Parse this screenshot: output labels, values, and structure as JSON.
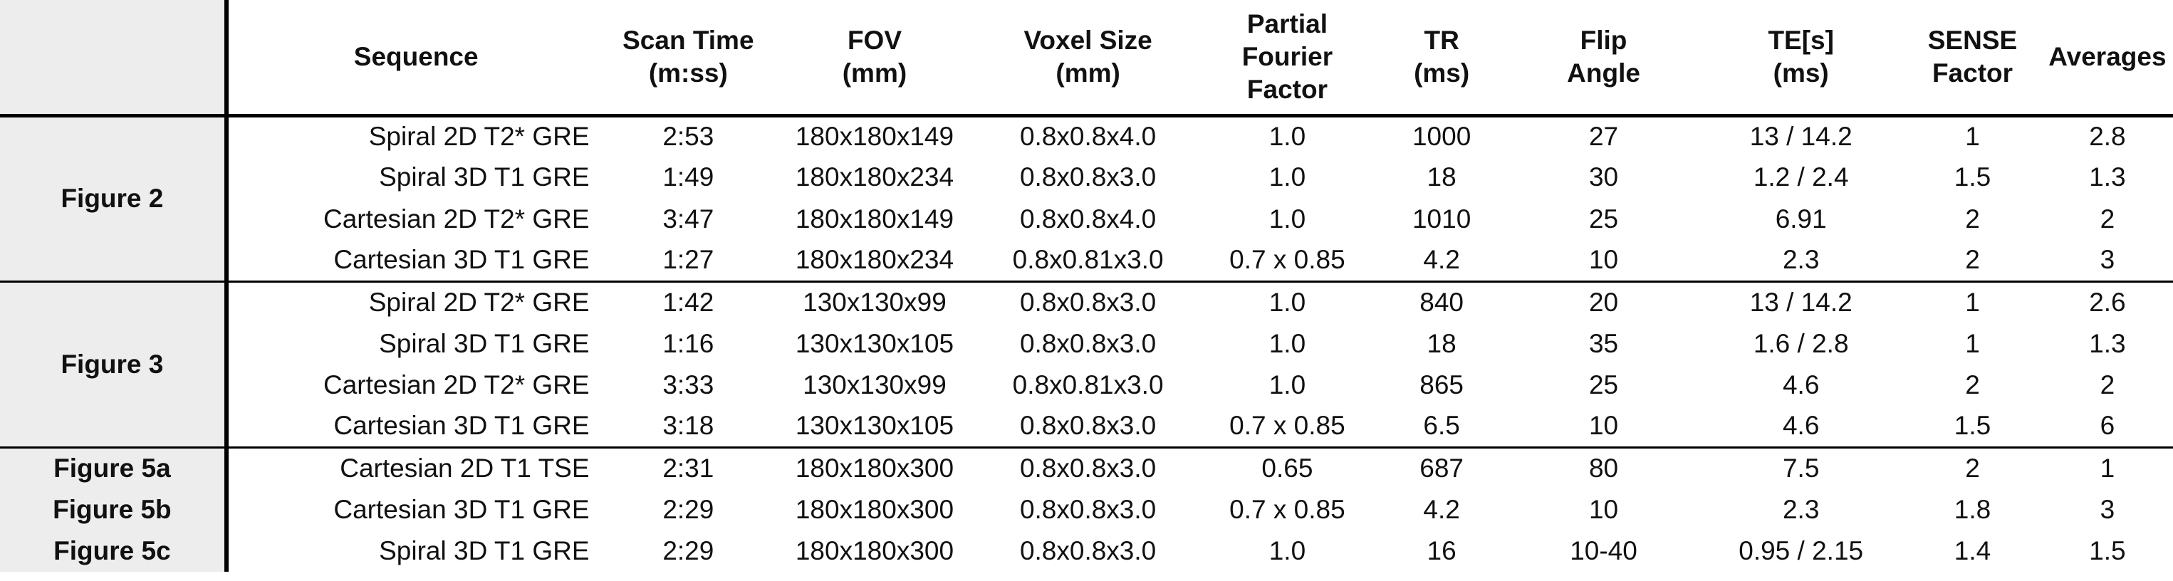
{
  "headers": [
    "",
    "Sequence",
    "Scan Time\n(m:ss)",
    "FOV\n(mm)",
    "Voxel Size\n(mm)",
    "Partial\nFourier\nFactor",
    "TR\n(ms)",
    "Flip\nAngle",
    "TE[s]\n(ms)",
    "SENSE\nFactor",
    "Averages"
  ],
  "groups": [
    {
      "label": "Figure 2",
      "rows": [
        [
          "Spiral 2D T2* GRE",
          "2:53",
          "180x180x149",
          "0.8x0.8x4.0",
          "1.0",
          "1000",
          "27",
          "13 / 14.2",
          "1",
          "2.8"
        ],
        [
          "Spiral 3D T1 GRE",
          "1:49",
          "180x180x234",
          "0.8x0.8x3.0",
          "1.0",
          "18",
          "30",
          "1.2 / 2.4",
          "1.5",
          "1.3"
        ],
        [
          "Cartesian 2D T2* GRE",
          "3:47",
          "180x180x149",
          "0.8x0.8x4.0",
          "1.0",
          "1010",
          "25",
          "6.91",
          "2",
          "2"
        ],
        [
          "Cartesian 3D T1 GRE",
          "1:27",
          "180x180x234",
          "0.8x0.81x3.0",
          "0.7 x 0.85",
          "4.2",
          "10",
          "2.3",
          "2",
          "3"
        ]
      ]
    },
    {
      "label": "Figure 3",
      "rows": [
        [
          "Spiral 2D T2* GRE",
          "1:42",
          "130x130x99",
          "0.8x0.8x3.0",
          "1.0",
          "840",
          "20",
          "13 / 14.2",
          "1",
          "2.6"
        ],
        [
          "Spiral 3D T1 GRE",
          "1:16",
          "130x130x105",
          "0.8x0.8x3.0",
          "1.0",
          "18",
          "35",
          "1.6 / 2.8",
          "1",
          "1.3"
        ],
        [
          "Cartesian 2D T2* GRE",
          "3:33",
          "130x130x99",
          "0.8x0.81x3.0",
          "1.0",
          "865",
          "25",
          "4.6",
          "2",
          "2"
        ],
        [
          "Cartesian 3D T1 GRE",
          "3:18",
          "130x130x105",
          "0.8x0.8x3.0",
          "0.7 x 0.85",
          "6.5",
          "10",
          "4.6",
          "1.5",
          "6"
        ]
      ]
    },
    {
      "label": "",
      "rows": [
        [
          "Cartesian 2D T1 TSE",
          "2:31",
          "180x180x300",
          "0.8x0.8x3.0",
          "0.65",
          "687",
          "80",
          "7.5",
          "2",
          "1"
        ],
        [
          "Cartesian 3D T1 GRE",
          "2:29",
          "180x180x300",
          "0.8x0.8x3.0",
          "0.7 x 0.85",
          "4.2",
          "10",
          "2.3",
          "1.8",
          "3"
        ],
        [
          "Spiral 3D T1 GRE",
          "2:29",
          "180x180x300",
          "0.8x0.8x3.0",
          "1.0",
          "16",
          "10-40",
          "0.95 / 2.15",
          "1.4",
          "1.5"
        ]
      ],
      "row_labels": [
        "Figure 5a",
        "Figure 5b",
        "Figure 5c"
      ]
    }
  ]
}
